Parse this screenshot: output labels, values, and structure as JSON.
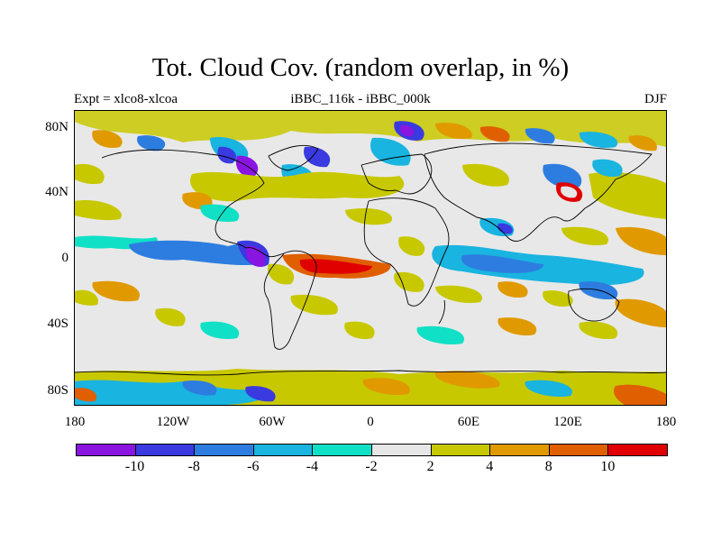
{
  "title": "Tot. Cloud Cov. (random overlap, in %)",
  "subtitle_left": "Expt = xlco8-xlcoa",
  "subtitle_center": "iBBC_116k - iBBC_000k",
  "subtitle_right": "DJF",
  "map": {
    "lat_ticks": [
      "80N",
      "40N",
      "0",
      "40S",
      "80S"
    ],
    "lon_ticks": [
      "180",
      "120W",
      "60W",
      "0",
      "60E",
      "120E",
      "180"
    ]
  },
  "colorbar": {
    "colors": [
      "#8a15e0",
      "#3a3ae0",
      "#2d7de0",
      "#19b4e0",
      "#10e0c6",
      "#e6e6e6",
      "#c8c800",
      "#e09a00",
      "#e05f00",
      "#e00000"
    ],
    "labels": [
      "-10",
      "-8",
      "-6",
      "-4",
      "-2",
      "2",
      "4",
      "8",
      "10"
    ]
  }
}
